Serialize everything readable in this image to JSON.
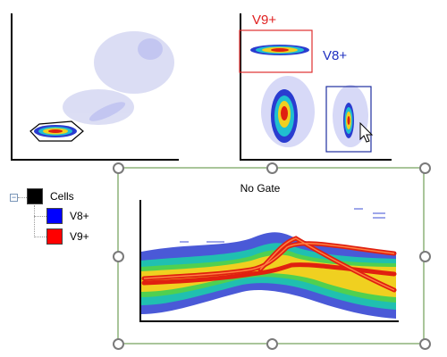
{
  "plots": {
    "top_left": {
      "name": "scatter-plot-1"
    },
    "top_right": {
      "gate_v9": {
        "label": "V9+",
        "color": "#e02020"
      },
      "gate_v8": {
        "label": "V8+",
        "color": "#2030c0"
      }
    },
    "bottom": {
      "title": "No Gate"
    }
  },
  "tree": {
    "toggle": "−",
    "root": {
      "label": "Cells",
      "color": "#000000"
    },
    "children": [
      {
        "label": "V8+",
        "color": "#0000ff"
      },
      {
        "label": "V9+",
        "color": "#ff0000"
      }
    ]
  }
}
